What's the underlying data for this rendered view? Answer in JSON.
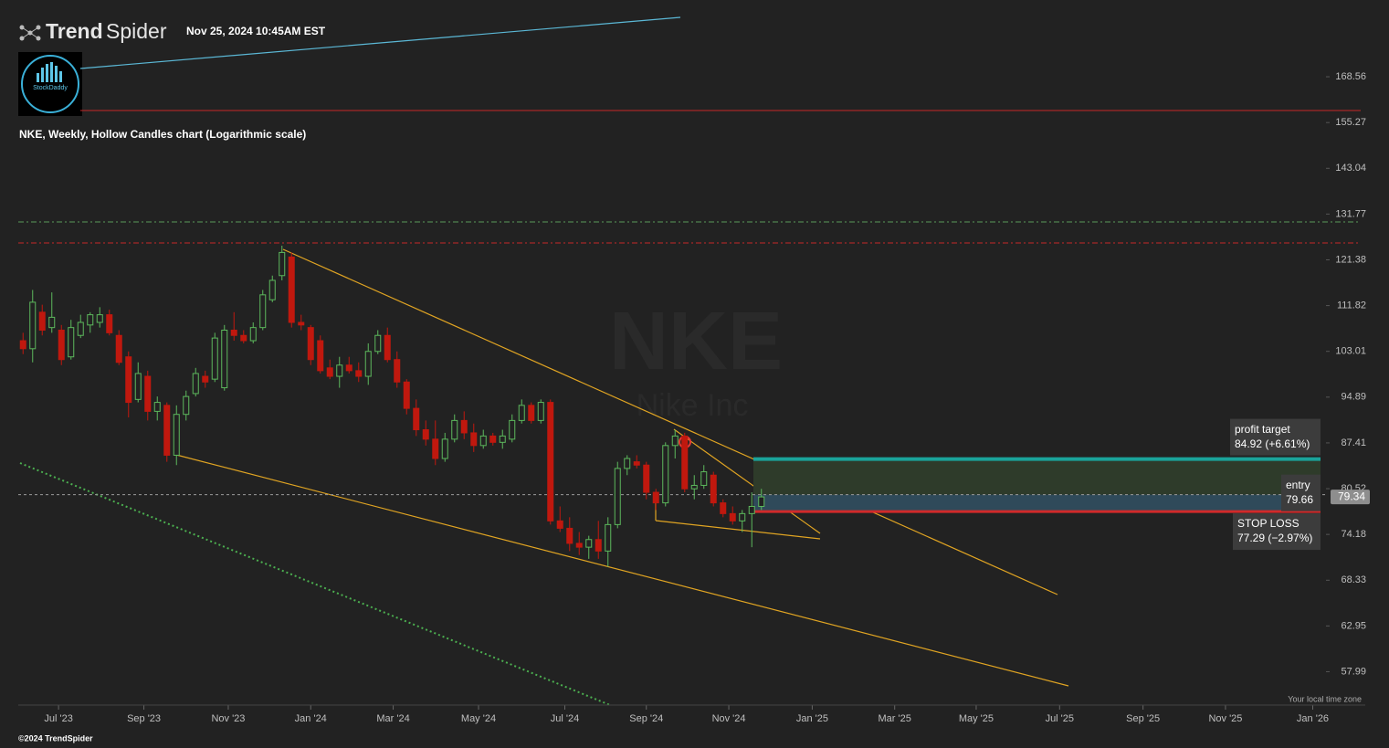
{
  "header": {
    "brand_bold": "Trend",
    "brand_light": "Spider",
    "timestamp": "Nov 25, 2024 10:45AM EST",
    "logo_text": "StockDaddy",
    "footer": "©2024 TrendSpider",
    "timezone_note": "Your local time zone"
  },
  "chart_data": {
    "type": "candlestick",
    "title": "NKE, Weekly, Hollow Candles chart (Logarithmic scale)",
    "watermark": "NKE",
    "watermark_sub": "Nike Inc",
    "log_scale": true,
    "up_color": "#5cb85c",
    "down_color": "#c0180e",
    "ylim": [
      54.8,
      190.3
    ],
    "yticks": [
      168.56,
      155.27,
      143.04,
      131.77,
      121.38,
      111.82,
      103.01,
      94.89,
      87.41,
      80.52,
      74.18,
      68.33,
      62.95,
      57.99
    ],
    "xlim": [
      -0.5,
      139.5
    ],
    "xticks": [
      {
        "value": 3.7,
        "label": "Jul '23"
      },
      {
        "value": 12.6,
        "label": "Sep '23"
      },
      {
        "value": 21.4,
        "label": "Nov '23"
      },
      {
        "value": 30,
        "label": "Jan '24"
      },
      {
        "value": 38.6,
        "label": "Mar '24"
      },
      {
        "value": 47.5,
        "label": "May '24"
      },
      {
        "value": 56.5,
        "label": "Jul '24"
      },
      {
        "value": 65,
        "label": "Sep '24"
      },
      {
        "value": 73.6,
        "label": "Nov '24"
      },
      {
        "value": 82.3,
        "label": "Jan '25"
      },
      {
        "value": 90.9,
        "label": "Mar '25"
      },
      {
        "value": 99.4,
        "label": "May '25"
      },
      {
        "value": 108.1,
        "label": "Jul '25"
      },
      {
        "value": 116.8,
        "label": "Sep '25"
      },
      {
        "value": 125.4,
        "label": "Nov '25"
      },
      {
        "value": 134.5,
        "label": "Jan '26"
      }
    ],
    "x": [
      0,
      1,
      2,
      3,
      4,
      5,
      6,
      7,
      8,
      9,
      10,
      11,
      12,
      13,
      14,
      15,
      16,
      17,
      18,
      19,
      20,
      21,
      22,
      23,
      24,
      25,
      26,
      27,
      28,
      29,
      30,
      31,
      32,
      33,
      34,
      35,
      36,
      37,
      38,
      39,
      40,
      41,
      42,
      43,
      44,
      45,
      46,
      47,
      48,
      49,
      50,
      51,
      52,
      53,
      54,
      55,
      56,
      57,
      58,
      59,
      60,
      61,
      62,
      63,
      64,
      65,
      66,
      67,
      68,
      69,
      70,
      71,
      72,
      73,
      74,
      75,
      76,
      77
    ],
    "ohlc": [
      [
        105.0,
        106.5,
        102.5,
        103.5
      ],
      [
        103.5,
        115.0,
        101.0,
        112.5
      ],
      [
        110.5,
        112.0,
        106.0,
        107.0
      ],
      [
        107.5,
        114.5,
        106.5,
        109.5
      ],
      [
        107.0,
        108.0,
        100.5,
        101.5
      ],
      [
        102.0,
        109.0,
        101.5,
        107.5
      ],
      [
        106.0,
        110.0,
        105.5,
        108.5
      ],
      [
        108.0,
        110.5,
        106.5,
        110.0
      ],
      [
        108.5,
        111.5,
        107.5,
        110.0
      ],
      [
        110.0,
        111.0,
        106.0,
        106.5
      ],
      [
        106.0,
        107.0,
        100.5,
        101.0
      ],
      [
        102.0,
        103.0,
        91.5,
        94.0
      ],
      [
        94.5,
        101.0,
        94.0,
        99.0
      ],
      [
        98.5,
        99.5,
        91.0,
        92.5
      ],
      [
        92.5,
        95.0,
        91.0,
        94.0
      ],
      [
        93.5,
        94.0,
        84.5,
        85.5
      ],
      [
        85.5,
        93.5,
        84.0,
        92.0
      ],
      [
        92.0,
        96.0,
        91.0,
        95.0
      ],
      [
        95.5,
        100.0,
        95.0,
        99.0
      ],
      [
        98.5,
        99.5,
        96.5,
        97.5
      ],
      [
        98.0,
        106.5,
        97.5,
        105.5
      ],
      [
        96.5,
        108.0,
        96.0,
        107.0
      ],
      [
        107.0,
        110.5,
        105.0,
        106.0
      ],
      [
        106.0,
        107.0,
        104.5,
        105.0
      ],
      [
        105.0,
        108.5,
        104.5,
        107.5
      ],
      [
        107.5,
        115.0,
        107.0,
        114.0
      ],
      [
        113.0,
        118.0,
        112.5,
        117.0
      ],
      [
        118.0,
        124.5,
        117.0,
        123.0
      ],
      [
        122.0,
        123.0,
        107.5,
        108.5
      ],
      [
        108.5,
        110.0,
        107.0,
        108.0
      ],
      [
        107.5,
        108.0,
        100.5,
        101.5
      ],
      [
        105.0,
        106.0,
        99.0,
        99.5
      ],
      [
        100.0,
        101.5,
        98.0,
        98.5
      ],
      [
        98.5,
        102.0,
        96.5,
        100.5
      ],
      [
        100.5,
        102.0,
        99.0,
        99.5
      ],
      [
        99.5,
        101.0,
        97.5,
        98.5
      ],
      [
        98.5,
        104.5,
        97.0,
        103.0
      ],
      [
        103.0,
        107.0,
        102.5,
        106.0
      ],
      [
        106.0,
        107.5,
        101.0,
        101.5
      ],
      [
        101.5,
        103.0,
        96.5,
        97.5
      ],
      [
        97.5,
        98.0,
        92.0,
        93.0
      ],
      [
        93.0,
        94.5,
        88.5,
        89.5
      ],
      [
        89.5,
        91.0,
        87.0,
        88.0
      ],
      [
        88.0,
        91.0,
        84.0,
        85.0
      ],
      [
        85.0,
        89.0,
        84.5,
        88.0
      ],
      [
        88.0,
        92.0,
        87.5,
        91.0
      ],
      [
        91.0,
        92.5,
        88.0,
        89.0
      ],
      [
        89.0,
        90.5,
        86.0,
        87.0
      ],
      [
        87.0,
        89.5,
        86.5,
        88.5
      ],
      [
        88.5,
        89.0,
        87.0,
        87.5
      ],
      [
        87.5,
        89.5,
        86.5,
        88.5
      ],
      [
        88.0,
        92.0,
        87.5,
        91.0
      ],
      [
        91.0,
        94.5,
        90.5,
        93.5
      ],
      [
        93.5,
        94.0,
        90.5,
        91.0
      ],
      [
        91.0,
        94.5,
        90.5,
        94.0
      ],
      [
        94.0,
        94.5,
        75.5,
        76.0
      ],
      [
        76.0,
        78.0,
        74.5,
        75.0
      ],
      [
        75.0,
        76.5,
        72.0,
        73.0
      ],
      [
        73.0,
        74.5,
        71.5,
        72.5
      ],
      [
        72.5,
        74.0,
        71.0,
        73.5
      ],
      [
        73.5,
        76.0,
        71.0,
        72.0
      ],
      [
        72.0,
        76.5,
        70.0,
        75.5
      ],
      [
        75.5,
        84.5,
        75.0,
        83.5
      ],
      [
        83.5,
        85.5,
        82.5,
        85.0
      ],
      [
        84.5,
        85.5,
        83.5,
        84.0
      ],
      [
        84.0,
        84.5,
        79.0,
        80.0
      ],
      [
        80.0,
        80.5,
        77.5,
        78.5
      ],
      [
        78.5,
        87.5,
        78.0,
        87.0
      ],
      [
        87.0,
        89.5,
        85.0,
        88.5
      ],
      [
        88.5,
        89.0,
        80.0,
        80.5
      ],
      [
        80.5,
        82.5,
        79.0,
        81.0
      ],
      [
        81.0,
        84.0,
        80.5,
        83.0
      ],
      [
        82.5,
        83.0,
        78.0,
        78.5
      ],
      [
        78.5,
        79.0,
        76.5,
        77.0
      ],
      [
        77.0,
        78.0,
        75.5,
        76.0
      ],
      [
        76.0,
        77.5,
        74.5,
        77.0
      ],
      [
        77.0,
        80.0,
        72.5,
        78.0
      ],
      [
        78.0,
        80.5,
        77.5,
        79.34
      ]
    ],
    "trade": {
      "target": {
        "label": "profit target",
        "value": 84.92,
        "value_label": "84.92 (+6.61%)",
        "color": "#1aa39a"
      },
      "entry": {
        "label": "entry",
        "value": 79.66,
        "value_label": "79.66",
        "color": "#9a9a9a"
      },
      "stop": {
        "label": "STOP LOSS",
        "value": 77.29,
        "value_label": "77.29 (−2.97%)",
        "color": "#d12a2a"
      }
    }
  }
}
